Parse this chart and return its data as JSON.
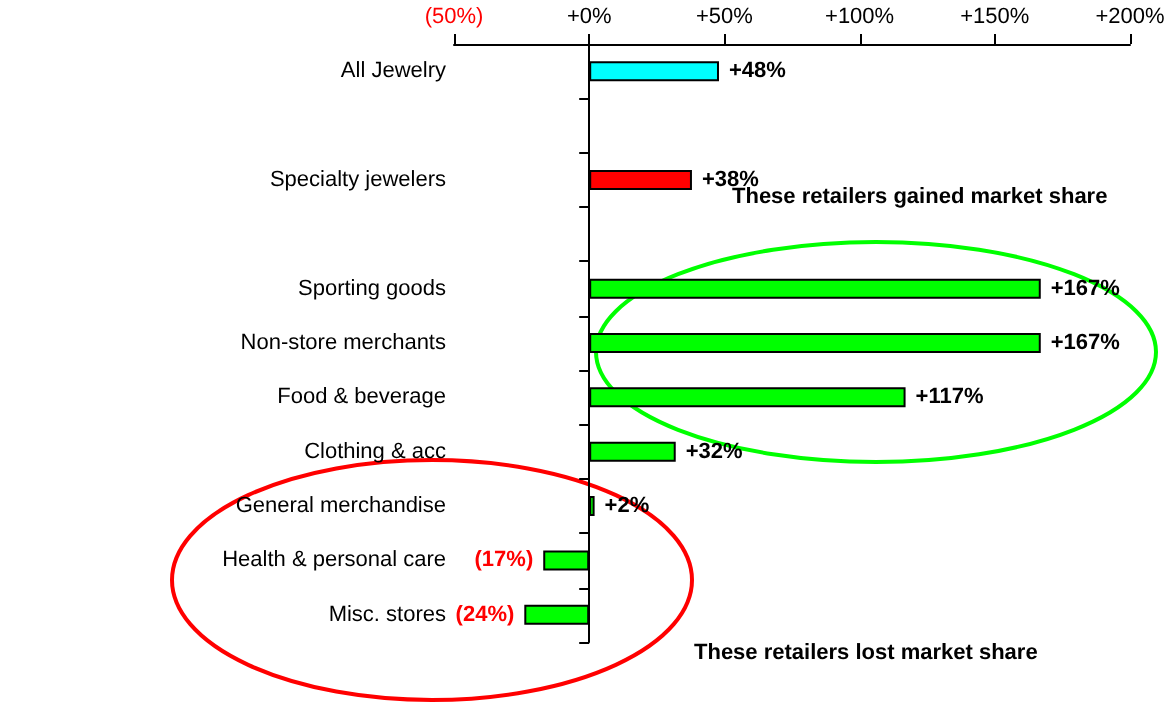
{
  "chart_data": {
    "type": "bar",
    "orientation": "horizontal",
    "categories": [
      "All Jewelry",
      null,
      "Specialty jewelers",
      null,
      "Sporting goods",
      "Non-store merchants",
      "Food & beverage",
      "Clothing & acc",
      "General merchandise",
      "Health & personal care",
      "Misc. stores"
    ],
    "values": [
      48,
      null,
      38,
      null,
      167,
      167,
      117,
      32,
      2,
      -17,
      -24
    ],
    "colors": [
      "#00ffff",
      null,
      "#ff0000",
      null,
      "#00ff00",
      "#00ff00",
      "#00ff00",
      "#00ff00",
      "#00ff00",
      "#00ff00",
      "#00ff00"
    ],
    "value_labels": [
      "+48%",
      null,
      "+38%",
      null,
      "+167%",
      "+167%",
      "+117%",
      "+32%",
      "+2%",
      "(17%)",
      "(24%)"
    ],
    "xlim": [
      -50,
      200
    ],
    "xticks": [
      {
        "value": -50,
        "label": "(50%)"
      },
      {
        "value": 0,
        "label": "+0%"
      },
      {
        "value": 50,
        "label": "+50%"
      },
      {
        "value": 100,
        "label": "+100%"
      },
      {
        "value": 150,
        "label": "+150%"
      },
      {
        "value": 200,
        "label": "+200%"
      }
    ],
    "annotations": [
      "These retailers gained market share",
      "These retailers lost market share"
    ]
  }
}
